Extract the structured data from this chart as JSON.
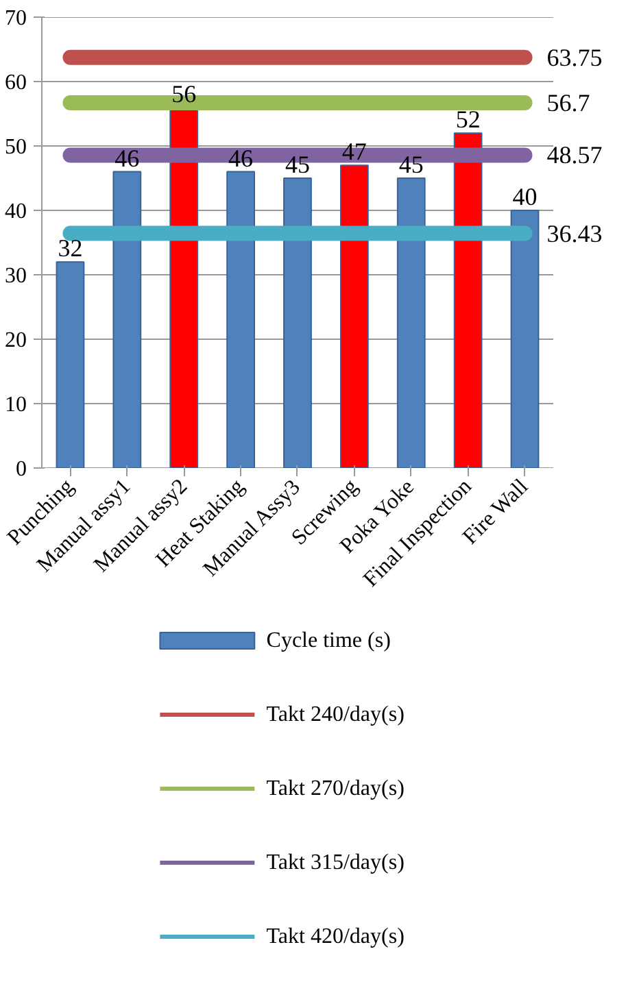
{
  "chart_data": {
    "type": "bar",
    "categories": [
      "Punching",
      "Manual assy1",
      "Manual assy2",
      "Heat Staking",
      "Manual Assy3",
      "Screwing",
      "Poka Yoke",
      "Final Inspection",
      "Fire Wall"
    ],
    "series": [
      {
        "name": "Cycle time (s)",
        "color": "#4f81bd",
        "colors": [
          "#4f81bd",
          "#4f81bd",
          "#ff0000",
          "#4f81bd",
          "#4f81bd",
          "#ff0000",
          "#4f81bd",
          "#ff0000",
          "#4f81bd"
        ],
        "values": [
          32,
          46,
          56,
          46,
          45,
          47,
          45,
          52,
          40
        ],
        "value_labels": [
          "32",
          "46",
          "56",
          "46",
          "45",
          "47",
          "45",
          "52",
          "40"
        ]
      },
      {
        "name": "Takt 240/day(s)",
        "type": "line",
        "color": "#c0504d",
        "values": [
          63.75,
          63.75,
          63.75,
          63.75,
          63.75,
          63.75,
          63.75,
          63.75,
          63.75
        ],
        "value_labels": [
          null,
          null,
          null,
          null,
          null,
          null,
          null,
          null,
          "63.75"
        ]
      },
      {
        "name": "Takt 270/day(s)",
        "type": "line",
        "color": "#9bbb59",
        "values": [
          56.7,
          56.7,
          56.7,
          56.7,
          56.7,
          56.7,
          56.7,
          56.7,
          56.7
        ],
        "value_labels": [
          null,
          null,
          null,
          null,
          null,
          null,
          null,
          null,
          "56.7"
        ]
      },
      {
        "name": "Takt 315/day(s)",
        "type": "line",
        "color": "#8064a2",
        "values": [
          48.57,
          48.57,
          48.57,
          48.57,
          48.57,
          48.57,
          48.57,
          48.57,
          48.57
        ],
        "value_labels": [
          null,
          null,
          null,
          null,
          null,
          null,
          null,
          null,
          "48.57"
        ]
      },
      {
        "name": "Takt 420/day(s)",
        "type": "line",
        "color": "#4bacc6",
        "values": [
          36.43,
          36.43,
          36.43,
          36.43,
          36.43,
          36.43,
          36.43,
          36.43,
          36.43
        ],
        "value_labels": [
          null,
          null,
          null,
          null,
          null,
          null,
          null,
          null,
          "36.43"
        ]
      }
    ],
    "ylim": [
      0,
      70
    ],
    "yticks": [
      0,
      10,
      20,
      30,
      40,
      50,
      60,
      70
    ],
    "grid": "y",
    "legend": "bottom"
  }
}
